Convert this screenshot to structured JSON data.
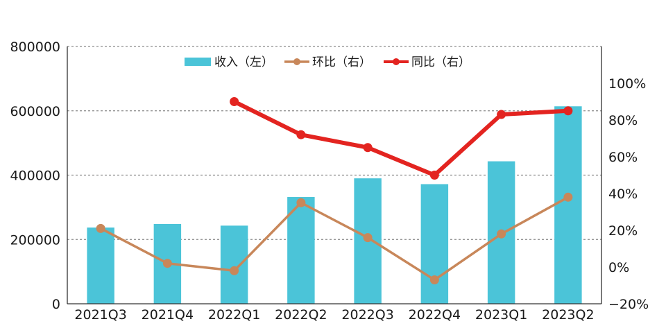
{
  "chart_data": {
    "type": "bar",
    "categories": [
      "2021Q3",
      "2021Q4",
      "2022Q1",
      "2022Q2",
      "2022Q3",
      "2022Q4",
      "2023Q1",
      "2023Q2"
    ],
    "series": [
      {
        "name": "收入（左）",
        "type": "bar",
        "axis": "left",
        "color": "#4bc4d8",
        "values": [
          237000,
          248000,
          243000,
          332000,
          390000,
          372000,
          443000,
          614000
        ]
      },
      {
        "name": "环比（右）",
        "type": "line",
        "axis": "right",
        "color": "#c8875a",
        "values": [
          0.21,
          0.02,
          -0.02,
          0.35,
          0.16,
          -0.07,
          0.18,
          0.38
        ]
      },
      {
        "name": "同比（右）",
        "type": "line",
        "axis": "right",
        "color": "#e32420",
        "values": [
          null,
          null,
          0.9,
          0.72,
          0.65,
          0.5,
          0.83,
          0.85
        ]
      }
    ],
    "yticks_left": [
      "0",
      "200000",
      "400000",
      "600000",
      "800000"
    ],
    "yticks_right": [
      "−20%",
      "0%",
      "20%",
      "40%",
      "60%",
      "80%",
      "100%"
    ],
    "ylim_left": [
      0,
      800000
    ],
    "ylim_right": [
      -0.2,
      1.2
    ],
    "grid": "horizontal dashed",
    "legend_position": "top"
  }
}
